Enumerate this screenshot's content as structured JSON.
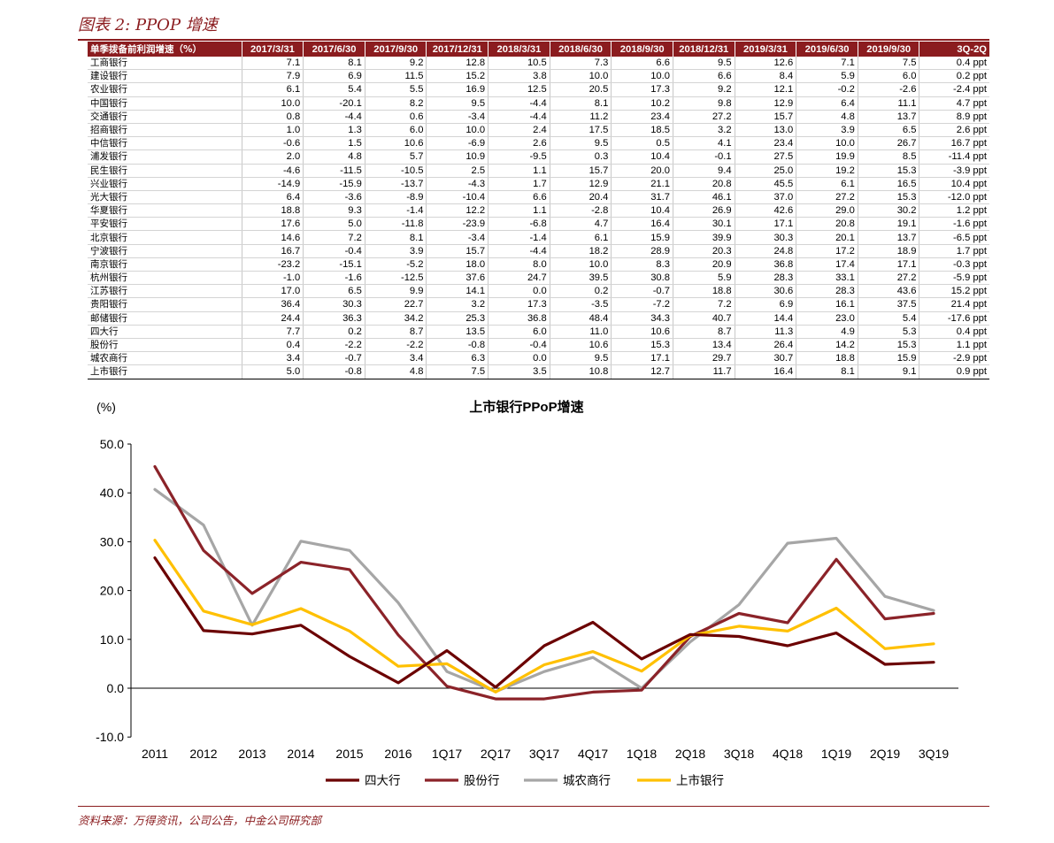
{
  "figure_title": "图表 2: PPOP 增速",
  "source": "资料来源：万得资讯，公司公告，中金公司研究部",
  "table": {
    "row_header": "单季拨备前利润增速（%）",
    "columns": [
      "2017/3/31",
      "2017/6/30",
      "2017/9/30",
      "2017/12/31",
      "2018/3/31",
      "2018/6/30",
      "2018/9/30",
      "2018/12/31",
      "2019/3/31",
      "2019/6/30",
      "2019/9/30",
      "3Q-2Q"
    ],
    "rows": [
      {
        "name": "工商银行",
        "values": [
          "7.1",
          "8.1",
          "9.2",
          "12.8",
          "10.5",
          "7.3",
          "6.6",
          "9.5",
          "12.6",
          "7.1",
          "7.5",
          "0.4 ppt"
        ]
      },
      {
        "name": "建设银行",
        "values": [
          "7.9",
          "6.9",
          "11.5",
          "15.2",
          "3.8",
          "10.0",
          "10.0",
          "6.6",
          "8.4",
          "5.9",
          "6.0",
          "0.2 ppt"
        ]
      },
      {
        "name": "农业银行",
        "values": [
          "6.1",
          "5.4",
          "5.5",
          "16.9",
          "12.5",
          "20.5",
          "17.3",
          "9.2",
          "12.1",
          "-0.2",
          "-2.6",
          "-2.4 ppt"
        ]
      },
      {
        "name": "中国银行",
        "values": [
          "10.0",
          "-20.1",
          "8.2",
          "9.5",
          "-4.4",
          "8.1",
          "10.2",
          "9.8",
          "12.9",
          "6.4",
          "11.1",
          "4.7 ppt"
        ]
      },
      {
        "name": "交通银行",
        "values": [
          "0.8",
          "-4.4",
          "0.6",
          "-3.4",
          "-4.4",
          "11.2",
          "23.4",
          "27.2",
          "15.7",
          "4.8",
          "13.7",
          "8.9 ppt"
        ]
      },
      {
        "name": "招商银行",
        "values": [
          "1.0",
          "1.3",
          "6.0",
          "10.0",
          "2.4",
          "17.5",
          "18.5",
          "3.2",
          "13.0",
          "3.9",
          "6.5",
          "2.6 ppt"
        ]
      },
      {
        "name": "中信银行",
        "values": [
          "-0.6",
          "1.5",
          "10.6",
          "-6.9",
          "2.6",
          "9.5",
          "0.5",
          "4.1",
          "23.4",
          "10.0",
          "26.7",
          "16.7 ppt"
        ]
      },
      {
        "name": "浦发银行",
        "values": [
          "2.0",
          "4.8",
          "5.7",
          "10.9",
          "-9.5",
          "0.3",
          "10.4",
          "-0.1",
          "27.5",
          "19.9",
          "8.5",
          "-11.4 ppt"
        ]
      },
      {
        "name": "民生银行",
        "values": [
          "-4.6",
          "-11.5",
          "-10.5",
          "2.5",
          "1.1",
          "15.7",
          "20.0",
          "9.4",
          "25.0",
          "19.2",
          "15.3",
          "-3.9 ppt"
        ]
      },
      {
        "name": "兴业银行",
        "values": [
          "-14.9",
          "-15.9",
          "-13.7",
          "-4.3",
          "1.7",
          "12.9",
          "21.1",
          "20.8",
          "45.5",
          "6.1",
          "16.5",
          "10.4 ppt"
        ]
      },
      {
        "name": "光大银行",
        "values": [
          "6.4",
          "-3.6",
          "-8.9",
          "-10.4",
          "6.6",
          "20.4",
          "31.7",
          "46.1",
          "37.0",
          "27.2",
          "15.3",
          "-12.0 ppt"
        ]
      },
      {
        "name": "华夏银行",
        "values": [
          "18.8",
          "9.3",
          "-1.4",
          "12.2",
          "1.1",
          "-2.8",
          "10.4",
          "26.9",
          "42.6",
          "29.0",
          "30.2",
          "1.2 ppt"
        ]
      },
      {
        "name": "平安银行",
        "values": [
          "17.6",
          "5.0",
          "-11.8",
          "-23.9",
          "-6.8",
          "4.7",
          "16.4",
          "30.1",
          "17.1",
          "20.8",
          "19.1",
          "-1.6 ppt"
        ]
      },
      {
        "name": "北京银行",
        "values": [
          "14.6",
          "7.2",
          "8.1",
          "-3.4",
          "-1.4",
          "6.1",
          "15.9",
          "39.9",
          "30.3",
          "20.1",
          "13.7",
          "-6.5 ppt"
        ]
      },
      {
        "name": "宁波银行",
        "values": [
          "16.7",
          "-0.4",
          "3.9",
          "15.7",
          "-4.4",
          "18.2",
          "28.9",
          "20.3",
          "24.8",
          "17.2",
          "18.9",
          "1.7 ppt"
        ]
      },
      {
        "name": "南京银行",
        "values": [
          "-23.2",
          "-15.1",
          "-5.2",
          "18.0",
          "8.0",
          "10.0",
          "8.3",
          "20.9",
          "36.8",
          "17.4",
          "17.1",
          "-0.3 ppt"
        ]
      },
      {
        "name": "杭州银行",
        "values": [
          "-1.0",
          "-1.6",
          "-12.5",
          "37.6",
          "24.7",
          "39.5",
          "30.8",
          "5.9",
          "28.3",
          "33.1",
          "27.2",
          "-5.9 ppt"
        ]
      },
      {
        "name": "江苏银行",
        "values": [
          "17.0",
          "6.5",
          "9.9",
          "14.1",
          "0.0",
          "0.2",
          "-0.7",
          "18.8",
          "30.6",
          "28.3",
          "43.6",
          "15.2 ppt"
        ]
      },
      {
        "name": "贵阳银行",
        "values": [
          "36.4",
          "30.3",
          "22.7",
          "3.2",
          "17.3",
          "-3.5",
          "-7.2",
          "7.2",
          "6.9",
          "16.1",
          "37.5",
          "21.4 ppt"
        ]
      },
      {
        "name": "邮储银行",
        "values": [
          "24.4",
          "36.3",
          "34.2",
          "25.3",
          "36.8",
          "48.4",
          "34.3",
          "40.7",
          "14.4",
          "23.0",
          "5.4",
          "-17.6 ppt"
        ]
      },
      {
        "name": "四大行",
        "values": [
          "7.7",
          "0.2",
          "8.7",
          "13.5",
          "6.0",
          "11.0",
          "10.6",
          "8.7",
          "11.3",
          "4.9",
          "5.3",
          "0.4 ppt"
        ]
      },
      {
        "name": "股份行",
        "values": [
          "0.4",
          "-2.2",
          "-2.2",
          "-0.8",
          "-0.4",
          "10.6",
          "15.3",
          "13.4",
          "26.4",
          "14.2",
          "15.3",
          "1.1 ppt"
        ]
      },
      {
        "name": "城农商行",
        "values": [
          "3.4",
          "-0.7",
          "3.4",
          "6.3",
          "0.0",
          "9.5",
          "17.1",
          "29.7",
          "30.7",
          "18.8",
          "15.9",
          "-2.9 ppt"
        ]
      },
      {
        "name": "上市银行",
        "values": [
          "5.0",
          "-0.8",
          "4.8",
          "7.5",
          "3.5",
          "10.8",
          "12.7",
          "11.7",
          "16.4",
          "8.1",
          "9.1",
          "0.9 ppt"
        ]
      }
    ]
  },
  "chart_data": {
    "type": "line",
    "title": "上市银行PPoP增速",
    "ylabel": "(%)",
    "ylim": [
      -10,
      50
    ],
    "yticks": [
      "-10.0",
      "0.0",
      "10.0",
      "20.0",
      "30.0",
      "40.0",
      "50.0"
    ],
    "categories": [
      "2011",
      "2012",
      "2013",
      "2014",
      "2015",
      "2016",
      "1Q17",
      "2Q17",
      "3Q17",
      "4Q17",
      "1Q18",
      "2Q18",
      "3Q18",
      "4Q18",
      "1Q19",
      "2Q19",
      "3Q19"
    ],
    "legend_position": "bottom",
    "grid": false,
    "series": [
      {
        "name": "四大行",
        "color": "#6b0000",
        "values": [
          26.7,
          11.8,
          11.1,
          12.9,
          6.5,
          1.1,
          7.7,
          0.2,
          8.7,
          13.5,
          6.0,
          11.0,
          10.6,
          8.7,
          11.3,
          4.9,
          5.3
        ]
      },
      {
        "name": "股份行",
        "color": "#8b2329",
        "values": [
          45.4,
          28.2,
          19.4,
          25.8,
          24.3,
          10.9,
          0.4,
          -2.2,
          -2.2,
          -0.8,
          -0.4,
          10.6,
          15.3,
          13.4,
          26.4,
          14.2,
          15.3
        ]
      },
      {
        "name": "城农商行",
        "color": "#a6a6a6",
        "values": [
          40.7,
          33.4,
          12.9,
          30.1,
          28.2,
          17.5,
          3.4,
          -0.7,
          3.4,
          6.3,
          0.0,
          9.5,
          17.1,
          29.7,
          30.7,
          18.8,
          15.9
        ]
      },
      {
        "name": "上市银行",
        "color": "#ffc000",
        "values": [
          30.3,
          15.8,
          13.0,
          16.3,
          11.7,
          4.5,
          5.0,
          -0.8,
          4.8,
          7.5,
          3.5,
          10.8,
          12.7,
          11.7,
          16.4,
          8.1,
          9.1
        ]
      }
    ]
  }
}
